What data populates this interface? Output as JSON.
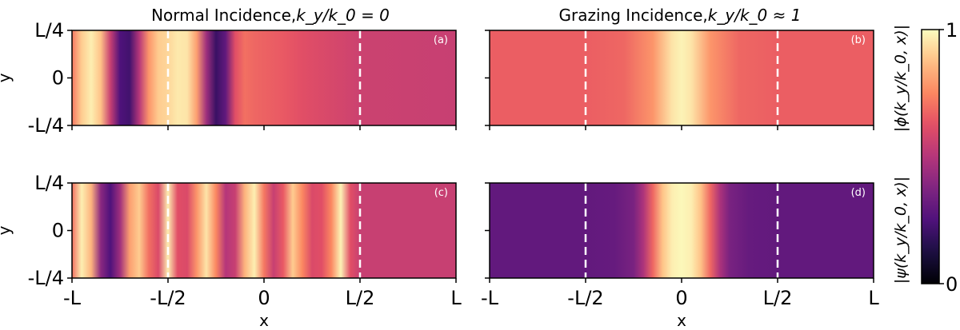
{
  "chart_data": [
    {
      "type": "heatmap",
      "panel": "(a)",
      "title": "Normal Incidence,",
      "title_math": "k_y/k_0 = 0",
      "ylabel": "y",
      "xlabel": "",
      "y_ticks": [
        "L/4",
        "0",
        "-L/4"
      ],
      "x_ticks": [
        "-L",
        "-L/2",
        "0",
        "L/2",
        "L"
      ],
      "x_range": [
        -1,
        1
      ],
      "y_range": [
        -0.25,
        0.25
      ],
      "dashed_lines_x": [
        -0.5,
        0.5
      ],
      "profile_x": [
        -1.0,
        -0.95,
        -0.9,
        -0.85,
        -0.8,
        -0.75,
        -0.7,
        -0.65,
        -0.6,
        -0.55,
        -0.5,
        -0.45,
        -0.4,
        -0.35,
        -0.3,
        -0.25,
        -0.2,
        -0.15,
        -0.1,
        -0.05,
        0.0,
        0.1,
        0.2,
        0.3,
        0.4,
        0.5,
        1.0
      ],
      "profile_value": [
        0.72,
        0.9,
        0.97,
        0.88,
        0.55,
        0.25,
        0.22,
        0.5,
        0.78,
        0.9,
        0.92,
        0.96,
        0.95,
        0.8,
        0.45,
        0.2,
        0.3,
        0.62,
        0.7,
        0.68,
        0.67,
        0.65,
        0.62,
        0.6,
        0.58,
        0.56,
        0.55
      ]
    },
    {
      "type": "heatmap",
      "panel": "(b)",
      "title": "Grazing Incidence,",
      "title_math": "k_y/k_0 ≈ 1",
      "x_ticks": [
        "-L",
        "-L/2",
        "0",
        "L/2",
        "L"
      ],
      "x_range": [
        -1,
        1
      ],
      "y_range": [
        -0.25,
        0.25
      ],
      "dashed_lines_x": [
        -0.5,
        0.5
      ],
      "profile_x": [
        -1.0,
        -0.5,
        -0.3,
        -0.15,
        -0.05,
        0.0,
        0.05,
        0.15,
        0.3,
        0.5,
        1.0
      ],
      "profile_value": [
        0.66,
        0.66,
        0.68,
        0.78,
        0.95,
        0.98,
        0.95,
        0.78,
        0.68,
        0.66,
        0.66
      ]
    },
    {
      "type": "heatmap",
      "panel": "(c)",
      "ylabel": "y",
      "xlabel": "x",
      "y_ticks": [
        "L/4",
        "0",
        "-L/4"
      ],
      "x_ticks": [
        "-L",
        "-L/2",
        "0",
        "L/2",
        "L"
      ],
      "x_range": [
        -1,
        1
      ],
      "y_range": [
        -0.25,
        0.25
      ],
      "dashed_lines_x": [
        -0.5,
        0.5
      ],
      "profile_x": [
        -1.0,
        -0.95,
        -0.9,
        -0.85,
        -0.8,
        -0.75,
        -0.7,
        -0.65,
        -0.6,
        -0.55,
        -0.5,
        -0.45,
        -0.4,
        -0.35,
        -0.3,
        -0.25,
        -0.2,
        -0.15,
        -0.1,
        -0.05,
        0.0,
        0.05,
        0.1,
        0.15,
        0.2,
        0.25,
        0.3,
        0.35,
        0.4,
        0.45,
        0.5,
        1.0
      ],
      "profile_value": [
        0.7,
        0.97,
        0.85,
        0.4,
        0.25,
        0.45,
        0.8,
        0.9,
        0.7,
        0.6,
        0.97,
        0.62,
        0.6,
        0.78,
        0.95,
        0.75,
        0.5,
        0.55,
        0.85,
        0.97,
        0.72,
        0.55,
        0.65,
        0.9,
        0.75,
        0.6,
        0.62,
        0.75,
        0.98,
        0.62,
        0.55,
        0.55
      ]
    },
    {
      "type": "heatmap",
      "panel": "(d)",
      "xlabel": "x",
      "x_ticks": [
        "-L",
        "-L/2",
        "0",
        "L/2",
        "L"
      ],
      "x_range": [
        -1,
        1
      ],
      "y_range": [
        -0.25,
        0.25
      ],
      "dashed_lines_x": [
        -0.5,
        0.5
      ],
      "profile_x": [
        -1.0,
        -0.5,
        -0.35,
        -0.25,
        -0.2,
        -0.15,
        -0.1,
        -0.05,
        0.0,
        0.05,
        0.1,
        0.15,
        0.2,
        0.25,
        0.35,
        0.5,
        1.0
      ],
      "profile_value": [
        0.3,
        0.3,
        0.31,
        0.36,
        0.48,
        0.68,
        0.88,
        0.97,
        0.99,
        0.97,
        0.88,
        0.68,
        0.48,
        0.36,
        0.31,
        0.3,
        0.3
      ]
    }
  ],
  "colorbar": {
    "colormap": "magma",
    "range": [
      0,
      1
    ],
    "tick_labels": [
      "1",
      "0"
    ],
    "label_top": "|ϕ(k_y/k_0, x)|",
    "label_bottom": "|ψ(k_y/k_0, x)|"
  }
}
